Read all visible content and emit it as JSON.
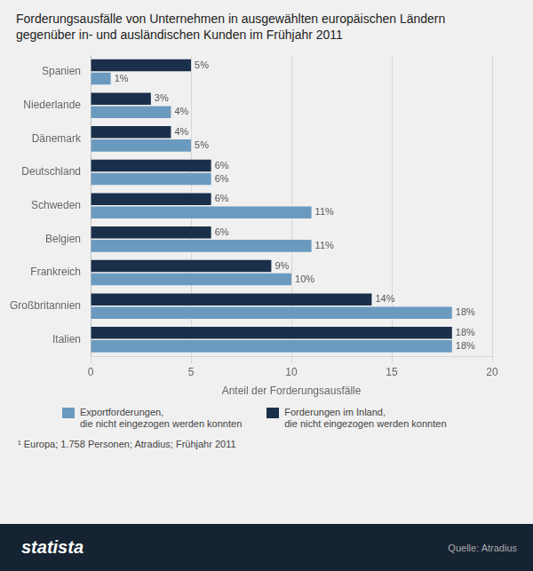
{
  "chart_data": {
    "type": "bar",
    "orientation": "horizontal",
    "title": "Forderungsausfälle von Unternehmen in ausgewählten europäischen Ländern",
    "subtitle": "gegenüber in- und ausländischen Kunden im Frühjahr 2011",
    "categories": [
      "Italien",
      "Großbritannien",
      "Frankreich",
      "Belgien",
      "Schweden",
      "Deutschland",
      "Dänemark",
      "Niederlande",
      "Spanien"
    ],
    "series": [
      {
        "name": "Forderungen im Inland,\ndie nicht eingezogen werden konnten",
        "color": "#1a2f4a",
        "values": [
          18,
          14,
          9,
          6,
          6,
          6,
          4,
          3,
          5
        ],
        "value_labels": [
          "18%",
          "14%",
          "9%",
          "6%",
          "6%",
          "6%",
          "4%",
          "3%",
          "5%"
        ]
      },
      {
        "name": "Exportforderungen,\ndie nicht eingezogen werden konnten",
        "color": "#6b9abf",
        "values": [
          18,
          18,
          10,
          11,
          11,
          6,
          5,
          4,
          1
        ],
        "value_labels": [
          "18%",
          "18%",
          "10%",
          "11%",
          "11%",
          "6%",
          "5%",
          "4%",
          "1%"
        ]
      }
    ],
    "x_label": "Anteil der Forderungsausfälle",
    "xlim": [
      0,
      20
    ],
    "xticks": [
      0,
      5,
      10,
      15,
      20
    ],
    "grid": true,
    "legend": "bottom",
    "data_labels": true,
    "annotations": [
      "¹  Europa; 1.758 Personen; Atradius; Frühjahr 2011",
      "statista",
      "Quelle: Atradius"
    ]
  }
}
